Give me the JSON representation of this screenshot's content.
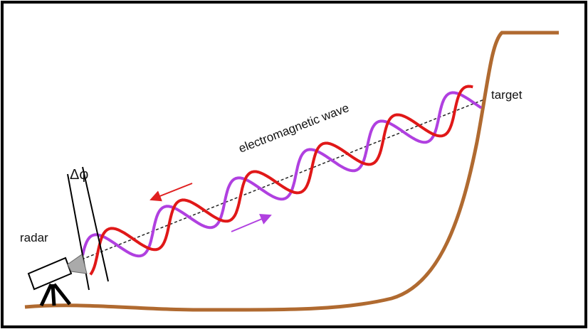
{
  "labels": {
    "phase": "Δφ",
    "radar": "radar",
    "wave": "electromagnetic wave",
    "target": "target"
  }
}
